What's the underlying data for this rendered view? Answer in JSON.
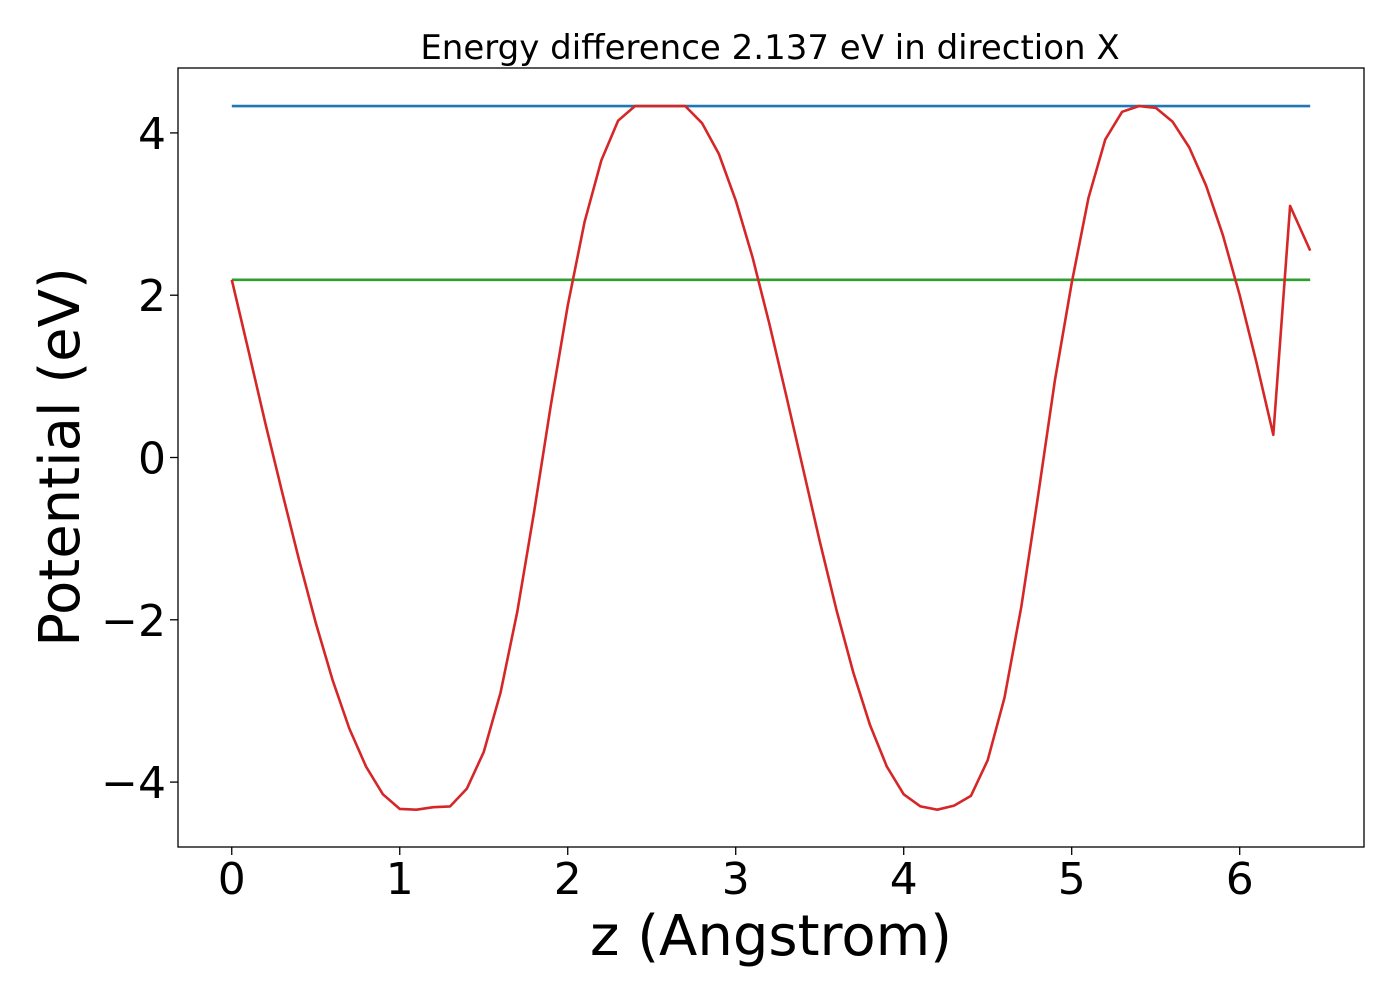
{
  "chart_data": {
    "type": "line",
    "title": "Energy difference 2.137 eV in direction X",
    "xlabel": "z (Angstrom)",
    "ylabel": "Potential (eV)",
    "xlim": [
      -0.32,
      6.74
    ],
    "ylim": [
      -4.8,
      4.8
    ],
    "xticks": [
      {
        "value": 0,
        "label": "0"
      },
      {
        "value": 1,
        "label": "1"
      },
      {
        "value": 2,
        "label": "2"
      },
      {
        "value": 3,
        "label": "3"
      },
      {
        "value": 4,
        "label": "4"
      },
      {
        "value": 5,
        "label": "5"
      },
      {
        "value": 6,
        "label": "6"
      }
    ],
    "yticks": [
      {
        "value": -4,
        "label": "−4"
      },
      {
        "value": -2,
        "label": "−2"
      },
      {
        "value": 0,
        "label": "0"
      },
      {
        "value": 2,
        "label": "2"
      },
      {
        "value": 4,
        "label": "4"
      }
    ],
    "grid": false,
    "series": [
      {
        "color": "#1f77b4",
        "x": [
          0,
          6.42
        ],
        "y": [
          4.33,
          4.33
        ]
      },
      {
        "color": "#2ca02c",
        "x": [
          0,
          6.42
        ],
        "y": [
          2.19,
          2.19
        ]
      },
      {
        "color": "#d62728",
        "x": [
          0.0,
          0.1,
          0.2,
          0.3,
          0.4,
          0.5,
          0.6,
          0.7,
          0.8,
          0.9,
          1.0,
          1.1,
          1.2,
          1.3,
          1.4,
          1.5,
          1.6,
          1.7,
          1.8,
          1.9,
          2.0,
          2.1,
          2.2,
          2.3,
          2.4,
          2.5,
          2.6,
          2.7,
          2.8,
          2.9,
          3.0,
          3.1,
          3.2,
          3.3,
          3.4,
          3.5,
          3.6,
          3.7,
          3.8,
          3.9,
          4.0,
          4.1,
          4.2,
          4.3,
          4.4,
          4.5,
          4.6,
          4.7,
          4.8,
          4.9,
          5.0,
          5.1,
          5.2,
          5.3,
          5.4,
          5.5,
          5.6,
          5.7,
          5.8,
          5.9,
          6.0,
          6.1,
          6.2,
          6.3,
          6.42
        ],
        "y": [
          2.19,
          1.31,
          0.42,
          -0.43,
          -1.26,
          -2.04,
          -2.74,
          -3.34,
          -3.81,
          -4.15,
          -4.33,
          -4.34,
          -4.31,
          -4.3,
          -4.08,
          -3.63,
          -2.9,
          -1.9,
          -0.67,
          0.65,
          1.87,
          2.9,
          3.66,
          4.15,
          4.33,
          4.33,
          4.33,
          4.33,
          4.12,
          3.74,
          3.17,
          2.47,
          1.65,
          0.77,
          -0.13,
          -1.03,
          -1.88,
          -2.65,
          -3.3,
          -3.81,
          -4.15,
          -4.3,
          -4.34,
          -4.29,
          -4.17,
          -3.73,
          -2.96,
          -1.84,
          -0.47,
          0.95,
          2.15,
          3.2,
          3.92,
          4.26,
          4.33,
          4.31,
          4.14,
          3.82,
          3.35,
          2.74,
          2.0,
          1.17,
          0.28,
          3.1,
          2.55
        ]
      }
    ]
  }
}
